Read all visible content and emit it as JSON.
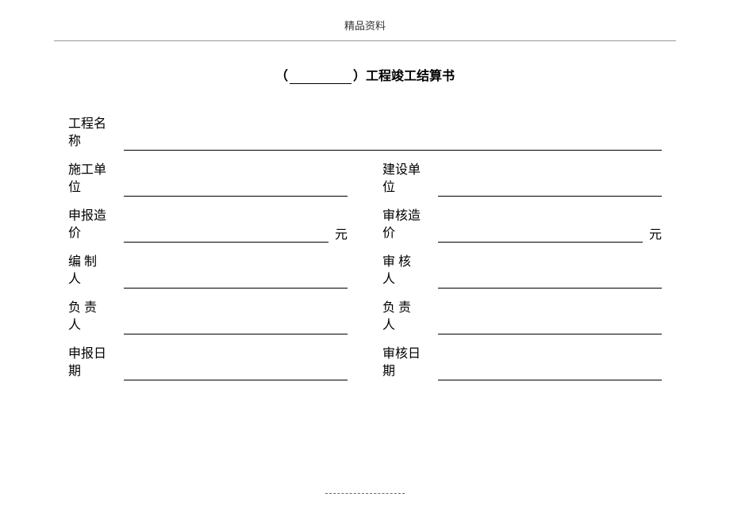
{
  "header": {
    "watermark": "精品资料"
  },
  "title": {
    "paren_left": "（",
    "paren_right": "）",
    "text": "工程竣工结算书"
  },
  "fields": {
    "project_name": {
      "label_line1": "工程名",
      "label_line2": "称"
    },
    "construction_unit": {
      "label_line1": "施工单",
      "label_line2": "位"
    },
    "build_unit": {
      "label_line1": "建设单",
      "label_line2": "位"
    },
    "declared_cost": {
      "label_line1": "申报造",
      "label_line2": "价",
      "suffix": "元"
    },
    "audited_cost": {
      "label_line1": "审核造",
      "label_line2": "价",
      "suffix": "元"
    },
    "compiler": {
      "label_line1": "编  制",
      "label_line2": "人"
    },
    "auditor": {
      "label_line1": "审  核",
      "label_line2": "人"
    },
    "responsible_left": {
      "label_line1": "负  责",
      "label_line2": "人"
    },
    "responsible_right": {
      "label_line1": "负  责",
      "label_line2": "人"
    },
    "declare_date": {
      "label_line1": "申报日",
      "label_line2": "期"
    },
    "audit_date": {
      "label_line1": "审核日",
      "label_line2": "期"
    }
  }
}
